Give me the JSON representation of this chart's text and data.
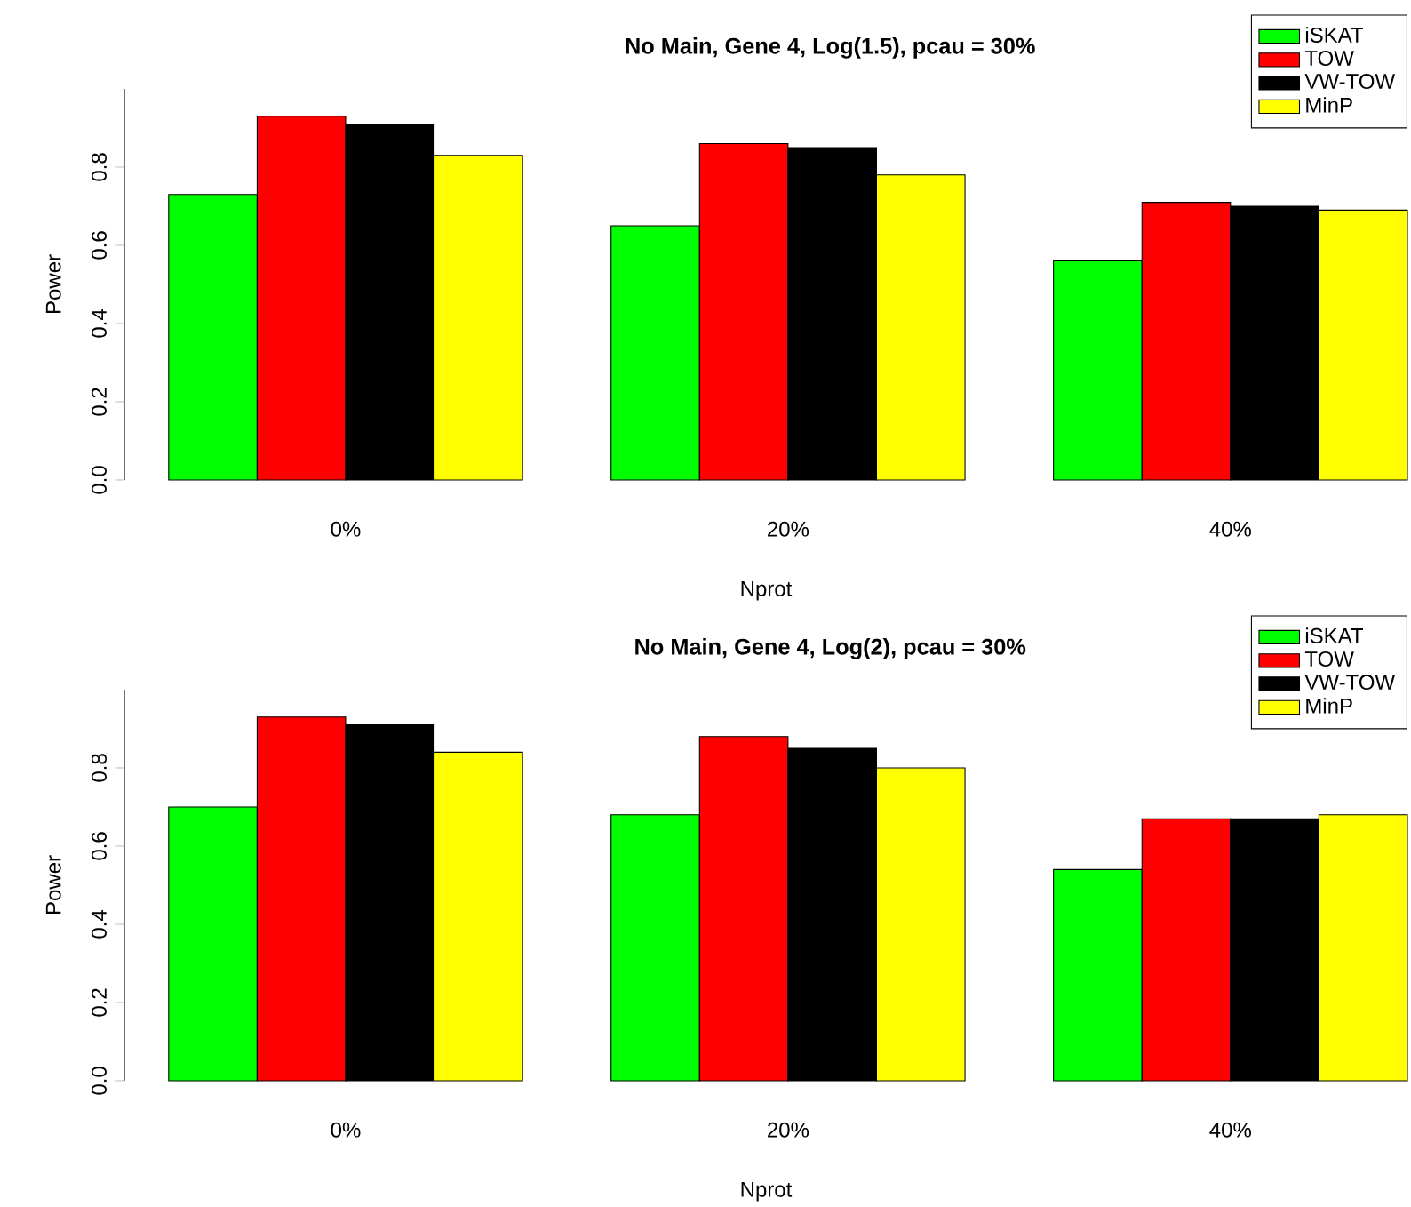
{
  "chart_data": [
    {
      "type": "bar",
      "title": "No Main, Gene 4, Log(1.5), pcau = 30%",
      "xlabel": "Nprot",
      "ylabel": "Power",
      "categories": [
        "0%",
        "20%",
        "40%"
      ],
      "series": [
        {
          "name": "iSKAT",
          "color": "#00ff00",
          "values": [
            0.73,
            0.65,
            0.56
          ]
        },
        {
          "name": "TOW",
          "color": "#ff0000",
          "values": [
            0.93,
            0.86,
            0.71
          ]
        },
        {
          "name": "VW-TOW",
          "color": "#000000",
          "values": [
            0.91,
            0.85,
            0.7
          ]
        },
        {
          "name": "MinP",
          "color": "#ffff00",
          "values": [
            0.83,
            0.78,
            0.69
          ]
        }
      ],
      "ylim": [
        0,
        1
      ],
      "yticks": [
        {
          "value": 0,
          "label": "0.0"
        },
        0.2,
        0.4,
        0.6,
        0.8
      ],
      "legend": "top right"
    },
    {
      "type": "bar",
      "title": "No Main, Gene 4, Log(2), pcau = 30%",
      "xlabel": "Nprot",
      "ylabel": "Power",
      "categories": [
        "0%",
        "20%",
        "40%"
      ],
      "series": [
        {
          "name": "iSKAT",
          "color": "#00ff00",
          "values": [
            0.7,
            0.68,
            0.54
          ]
        },
        {
          "name": "TOW",
          "color": "#ff0000",
          "values": [
            0.93,
            0.88,
            0.67
          ]
        },
        {
          "name": "VW-TOW",
          "color": "#000000",
          "values": [
            0.91,
            0.85,
            0.67
          ]
        },
        {
          "name": "MinP",
          "color": "#ffff00",
          "values": [
            0.84,
            0.8,
            0.68
          ]
        }
      ],
      "ylim": [
        0,
        1
      ],
      "yticks": [
        {
          "value": 0,
          "label": "0.0"
        },
        0.2,
        0.4,
        0.6,
        0.8
      ],
      "legend": "top right"
    }
  ]
}
